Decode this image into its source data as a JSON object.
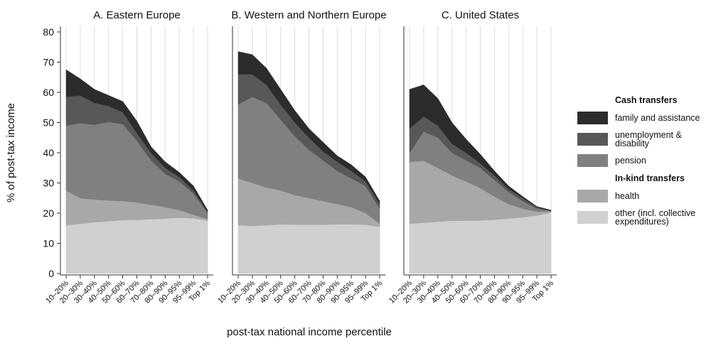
{
  "ylabel": "% of post-tax income",
  "xlabel": "post-tax national income percentile",
  "legend_groups": [
    "Cash transfers",
    "In-kind transfers"
  ],
  "chart_data": [
    {
      "type": "stacked-area",
      "title": "A. Eastern Europe",
      "categories": [
        "10–20%",
        "20–30%",
        "30–40%",
        "40–50%",
        "50–60%",
        "60–70%",
        "70–80%",
        "80–90%",
        "90–95%",
        "95–99%",
        "Top 1%"
      ],
      "ylim": [
        0,
        80
      ],
      "yticks": [
        0,
        10,
        20,
        30,
        40,
        50,
        60,
        70,
        80
      ],
      "grid": true,
      "series": [
        {
          "name": "other (incl. collective expenditures)",
          "color": "#d0d0d0",
          "values": [
            16,
            16.5,
            17,
            17.3,
            17.7,
            17.8,
            18,
            18.2,
            18.5,
            18.3,
            17.5
          ]
        },
        {
          "name": "health",
          "color": "#a8a8a8",
          "values": [
            11.5,
            8.5,
            7.5,
            6.9,
            6.3,
            5.7,
            4.8,
            3.8,
            2.5,
            1.2,
            0.5
          ]
        },
        {
          "name": "pension",
          "color": "#808080",
          "values": [
            21.5,
            24.8,
            24.8,
            26,
            25.5,
            20.5,
            14.7,
            11,
            9.5,
            7,
            2
          ]
        },
        {
          "name": "unemployment & disability",
          "color": "#585858",
          "values": [
            9.5,
            9.2,
            7.2,
            5.3,
            4,
            2.5,
            2.5,
            2,
            1.5,
            1,
            0.5
          ]
        },
        {
          "name": "family and assistance",
          "color": "#2c2c2c",
          "values": [
            9,
            5.5,
            4.5,
            3.5,
            3.5,
            4,
            2,
            2,
            1.5,
            1.5,
            0.5
          ]
        }
      ]
    },
    {
      "type": "stacked-area",
      "title": "B. Western and Northern Europe",
      "categories": [
        "10–20%",
        "20–30%",
        "30–40%",
        "40–50%",
        "50–60%",
        "60–70%",
        "70–80%",
        "80–90%",
        "90–95%",
        "95–99%",
        "Top 1%"
      ],
      "ylim": [
        0,
        80
      ],
      "grid": true,
      "series": [
        {
          "name": "other (incl. collective expenditures)",
          "color": "#d0d0d0",
          "values": [
            16,
            15.8,
            16,
            16.3,
            16.2,
            16.2,
            16.2,
            16.3,
            16.3,
            16.2,
            15.5
          ]
        },
        {
          "name": "health",
          "color": "#a8a8a8",
          "values": [
            15.5,
            14.2,
            12.5,
            11.2,
            9.8,
            8.8,
            7.8,
            6.7,
            5.7,
            3.8,
            1
          ]
        },
        {
          "name": "pension",
          "color": "#808080",
          "values": [
            24.5,
            28.5,
            28,
            23.5,
            19.5,
            16,
            13.5,
            11,
            9.5,
            9,
            5
          ]
        },
        {
          "name": "unemployment & disability",
          "color": "#585858",
          "values": [
            10,
            7.5,
            6,
            5,
            4.5,
            4,
            3,
            3,
            2.5,
            1.5,
            1.5
          ]
        },
        {
          "name": "family and assistance",
          "color": "#2c2c2c",
          "values": [
            7.5,
            6.5,
            5.5,
            5,
            4,
            3,
            3,
            2,
            2,
            1.5,
            1
          ]
        }
      ]
    },
    {
      "type": "stacked-area",
      "title": "C. United States",
      "categories": [
        "10–20%",
        "20–30%",
        "30–40%",
        "40–50%",
        "50–60%",
        "60–70%",
        "70–80%",
        "80–90%",
        "90–95%",
        "95–99%",
        "Top 1%"
      ],
      "ylim": [
        0,
        80
      ],
      "grid": true,
      "series": [
        {
          "name": "other (incl. collective expenditures)",
          "color": "#d0d0d0",
          "values": [
            16.5,
            16.8,
            17.2,
            17.5,
            17.5,
            17.6,
            17.8,
            18.2,
            18.6,
            19.2,
            20.2
          ]
        },
        {
          "name": "health",
          "color": "#a8a8a8",
          "values": [
            20.5,
            20.5,
            17.8,
            15,
            13,
            10.7,
            7.7,
            4.8,
            2.9,
            1.3,
            0.3
          ]
        },
        {
          "name": "pension",
          "color": "#808080",
          "values": [
            3,
            9.7,
            10,
            7.5,
            7,
            6.7,
            5.5,
            4,
            2.5,
            1,
            0.2
          ]
        },
        {
          "name": "unemployment & disability",
          "color": "#585858",
          "values": [
            8,
            5,
            4,
            3,
            2.5,
            1.5,
            1.5,
            1,
            1,
            0.5,
            0.1
          ]
        },
        {
          "name": "family and assistance",
          "color": "#2c2c2c",
          "values": [
            13,
            10.5,
            9,
            7,
            4.5,
            3,
            1.5,
            1,
            0.5,
            0.2,
            0.2
          ]
        }
      ]
    }
  ]
}
